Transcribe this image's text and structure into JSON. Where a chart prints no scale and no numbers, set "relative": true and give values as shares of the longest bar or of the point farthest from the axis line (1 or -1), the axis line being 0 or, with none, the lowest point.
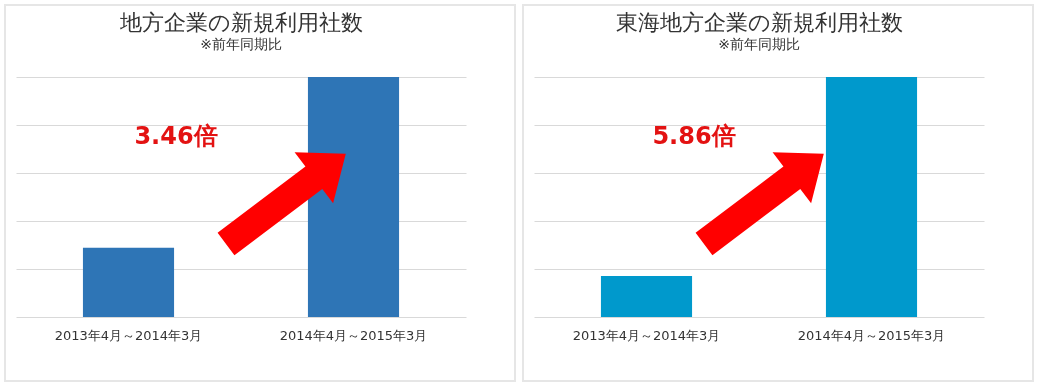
{
  "chart_data": [
    {
      "type": "bar",
      "title": "地方企業の新規利用社数",
      "subtitle": "※前年同期比",
      "categories": [
        "2013年4月～2014年3月",
        "2014年4月～2015年3月"
      ],
      "values": [
        0.289,
        1
      ],
      "color": "#2e75b6",
      "relative": true,
      "grid": "y",
      "annotations": [
        "3.46倍"
      ]
    },
    {
      "type": "bar",
      "title": "東海地方企業の新規利用社数",
      "subtitle": "※前年同期比",
      "categories": [
        "2013年4月～2014年3月",
        "2014年4月～2015年3月"
      ],
      "values": [
        0.171,
        1
      ],
      "color": "#0099cc",
      "relative": true,
      "grid": "y",
      "annotations": [
        "5.86倍"
      ]
    }
  ]
}
